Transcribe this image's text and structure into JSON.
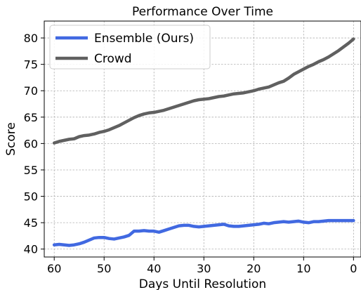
{
  "chart_data": {
    "type": "line",
    "title": "Performance Over Time",
    "xlabel": "Days Until Resolution",
    "ylabel": "Score",
    "xlim": [
      62,
      -1.5
    ],
    "ylim": [
      38.5,
      83.2
    ],
    "x_ticks": [
      60,
      50,
      40,
      30,
      20,
      10,
      0
    ],
    "y_ticks": [
      40,
      45,
      50,
      55,
      60,
      65,
      70,
      75,
      80
    ],
    "grid": true,
    "legend_position": "top-left",
    "series": [
      {
        "name": "Ensemble (Ours)",
        "color": "#4169e1",
        "x": [
          60,
          59,
          58,
          57,
          56,
          55,
          54,
          53,
          52,
          51,
          50,
          49,
          48,
          47,
          46,
          45,
          44,
          43,
          42,
          41,
          40,
          39,
          38,
          37,
          36,
          35,
          34,
          33,
          32,
          31,
          30,
          29,
          28,
          27,
          26,
          25,
          24,
          23,
          22,
          21,
          20,
          19,
          18,
          17,
          16,
          15,
          14,
          13,
          12,
          11,
          10,
          9,
          8,
          7,
          6,
          5,
          4,
          3,
          2,
          1,
          0
        ],
        "values": [
          40.8,
          40.9,
          40.8,
          40.7,
          40.8,
          41.0,
          41.3,
          41.7,
          42.1,
          42.2,
          42.2,
          42.0,
          41.9,
          42.1,
          42.3,
          42.6,
          43.4,
          43.4,
          43.5,
          43.4,
          43.4,
          43.2,
          43.5,
          43.8,
          44.1,
          44.4,
          44.5,
          44.5,
          44.3,
          44.2,
          44.3,
          44.4,
          44.5,
          44.6,
          44.7,
          44.4,
          44.3,
          44.3,
          44.4,
          44.5,
          44.6,
          44.7,
          44.9,
          44.8,
          45.0,
          45.1,
          45.2,
          45.1,
          45.2,
          45.3,
          45.1,
          45.0,
          45.2,
          45.2,
          45.3,
          45.4,
          45.4,
          45.4,
          45.4,
          45.4,
          45.4
        ]
      },
      {
        "name": "Crowd",
        "color": "#606060",
        "x": [
          60,
          59,
          58,
          57,
          56,
          55,
          54,
          53,
          52,
          51,
          50,
          49,
          48,
          47,
          46,
          45,
          44,
          43,
          42,
          41,
          40,
          39,
          38,
          37,
          36,
          35,
          34,
          33,
          32,
          31,
          30,
          29,
          28,
          27,
          26,
          25,
          24,
          23,
          22,
          21,
          20,
          19,
          18,
          17,
          16,
          15,
          14,
          13,
          12,
          11,
          10,
          9,
          8,
          7,
          6,
          5,
          4,
          3,
          2,
          1,
          0
        ],
        "values": [
          60.1,
          60.4,
          60.6,
          60.8,
          60.9,
          61.3,
          61.5,
          61.6,
          61.8,
          62.1,
          62.3,
          62.6,
          63.0,
          63.4,
          63.9,
          64.4,
          64.9,
          65.3,
          65.6,
          65.8,
          65.9,
          66.1,
          66.3,
          66.6,
          66.9,
          67.2,
          67.5,
          67.8,
          68.1,
          68.3,
          68.4,
          68.5,
          68.7,
          68.9,
          69.0,
          69.2,
          69.4,
          69.5,
          69.6,
          69.8,
          70.0,
          70.3,
          70.5,
          70.7,
          71.1,
          71.5,
          71.8,
          72.4,
          73.1,
          73.6,
          74.1,
          74.6,
          75.0,
          75.5,
          75.9,
          76.4,
          77.0,
          77.6,
          78.3,
          79.0,
          79.8
        ]
      }
    ]
  }
}
